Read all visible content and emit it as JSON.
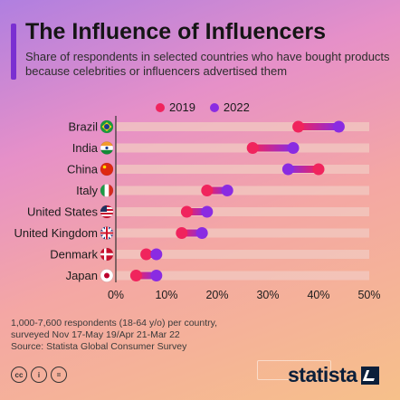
{
  "header": {
    "title": "The Influence of Influencers",
    "subtitle": "Share of respondents in selected countries who have bought products because celebrities or influencers advertised them"
  },
  "colors": {
    "accent_bar": "#7a2fd1",
    "series_2019": "#f0245d",
    "series_2022": "#8a2be2",
    "row_band": "#f2c9c1"
  },
  "chart_data": {
    "type": "dumbbell",
    "title": "The Influence of Influencers",
    "subtitle": "Share of respondents in selected countries who have bought products because celebrities or influencers advertised them",
    "categories": [
      "Brazil",
      "India",
      "China",
      "Italy",
      "United States",
      "United Kingdom",
      "Denmark",
      "Japan"
    ],
    "category_flags": [
      "brazil-flag-icon",
      "india-flag-icon",
      "china-flag-icon",
      "italy-flag-icon",
      "usa-flag-icon",
      "uk-flag-icon",
      "denmark-flag-icon",
      "japan-flag-icon"
    ],
    "series": [
      {
        "name": "2019",
        "color": "#f0245d",
        "values": [
          36,
          27,
          40,
          18,
          14,
          13,
          6,
          4
        ]
      },
      {
        "name": "2022",
        "color": "#8a2be2",
        "values": [
          44,
          35,
          34,
          22,
          18,
          17,
          8,
          8
        ]
      }
    ],
    "x_ticks": [
      "0%",
      "10%",
      "20%",
      "30%",
      "40%",
      "50%"
    ],
    "xlim": [
      0,
      50
    ],
    "unit": "%",
    "legend": "top-center",
    "grid": false
  },
  "footer": {
    "note_line1": "1,000-7,600 respondents (18-64 y/o) per country,",
    "note_line2": "surveyed Nov 17-May 19/Apr 21-Mar 22",
    "source": "Source: Statista Global Consumer Survey",
    "cc_icons": [
      "cc-icon",
      "attribution-icon",
      "equal-icon"
    ],
    "logo": "statista"
  }
}
